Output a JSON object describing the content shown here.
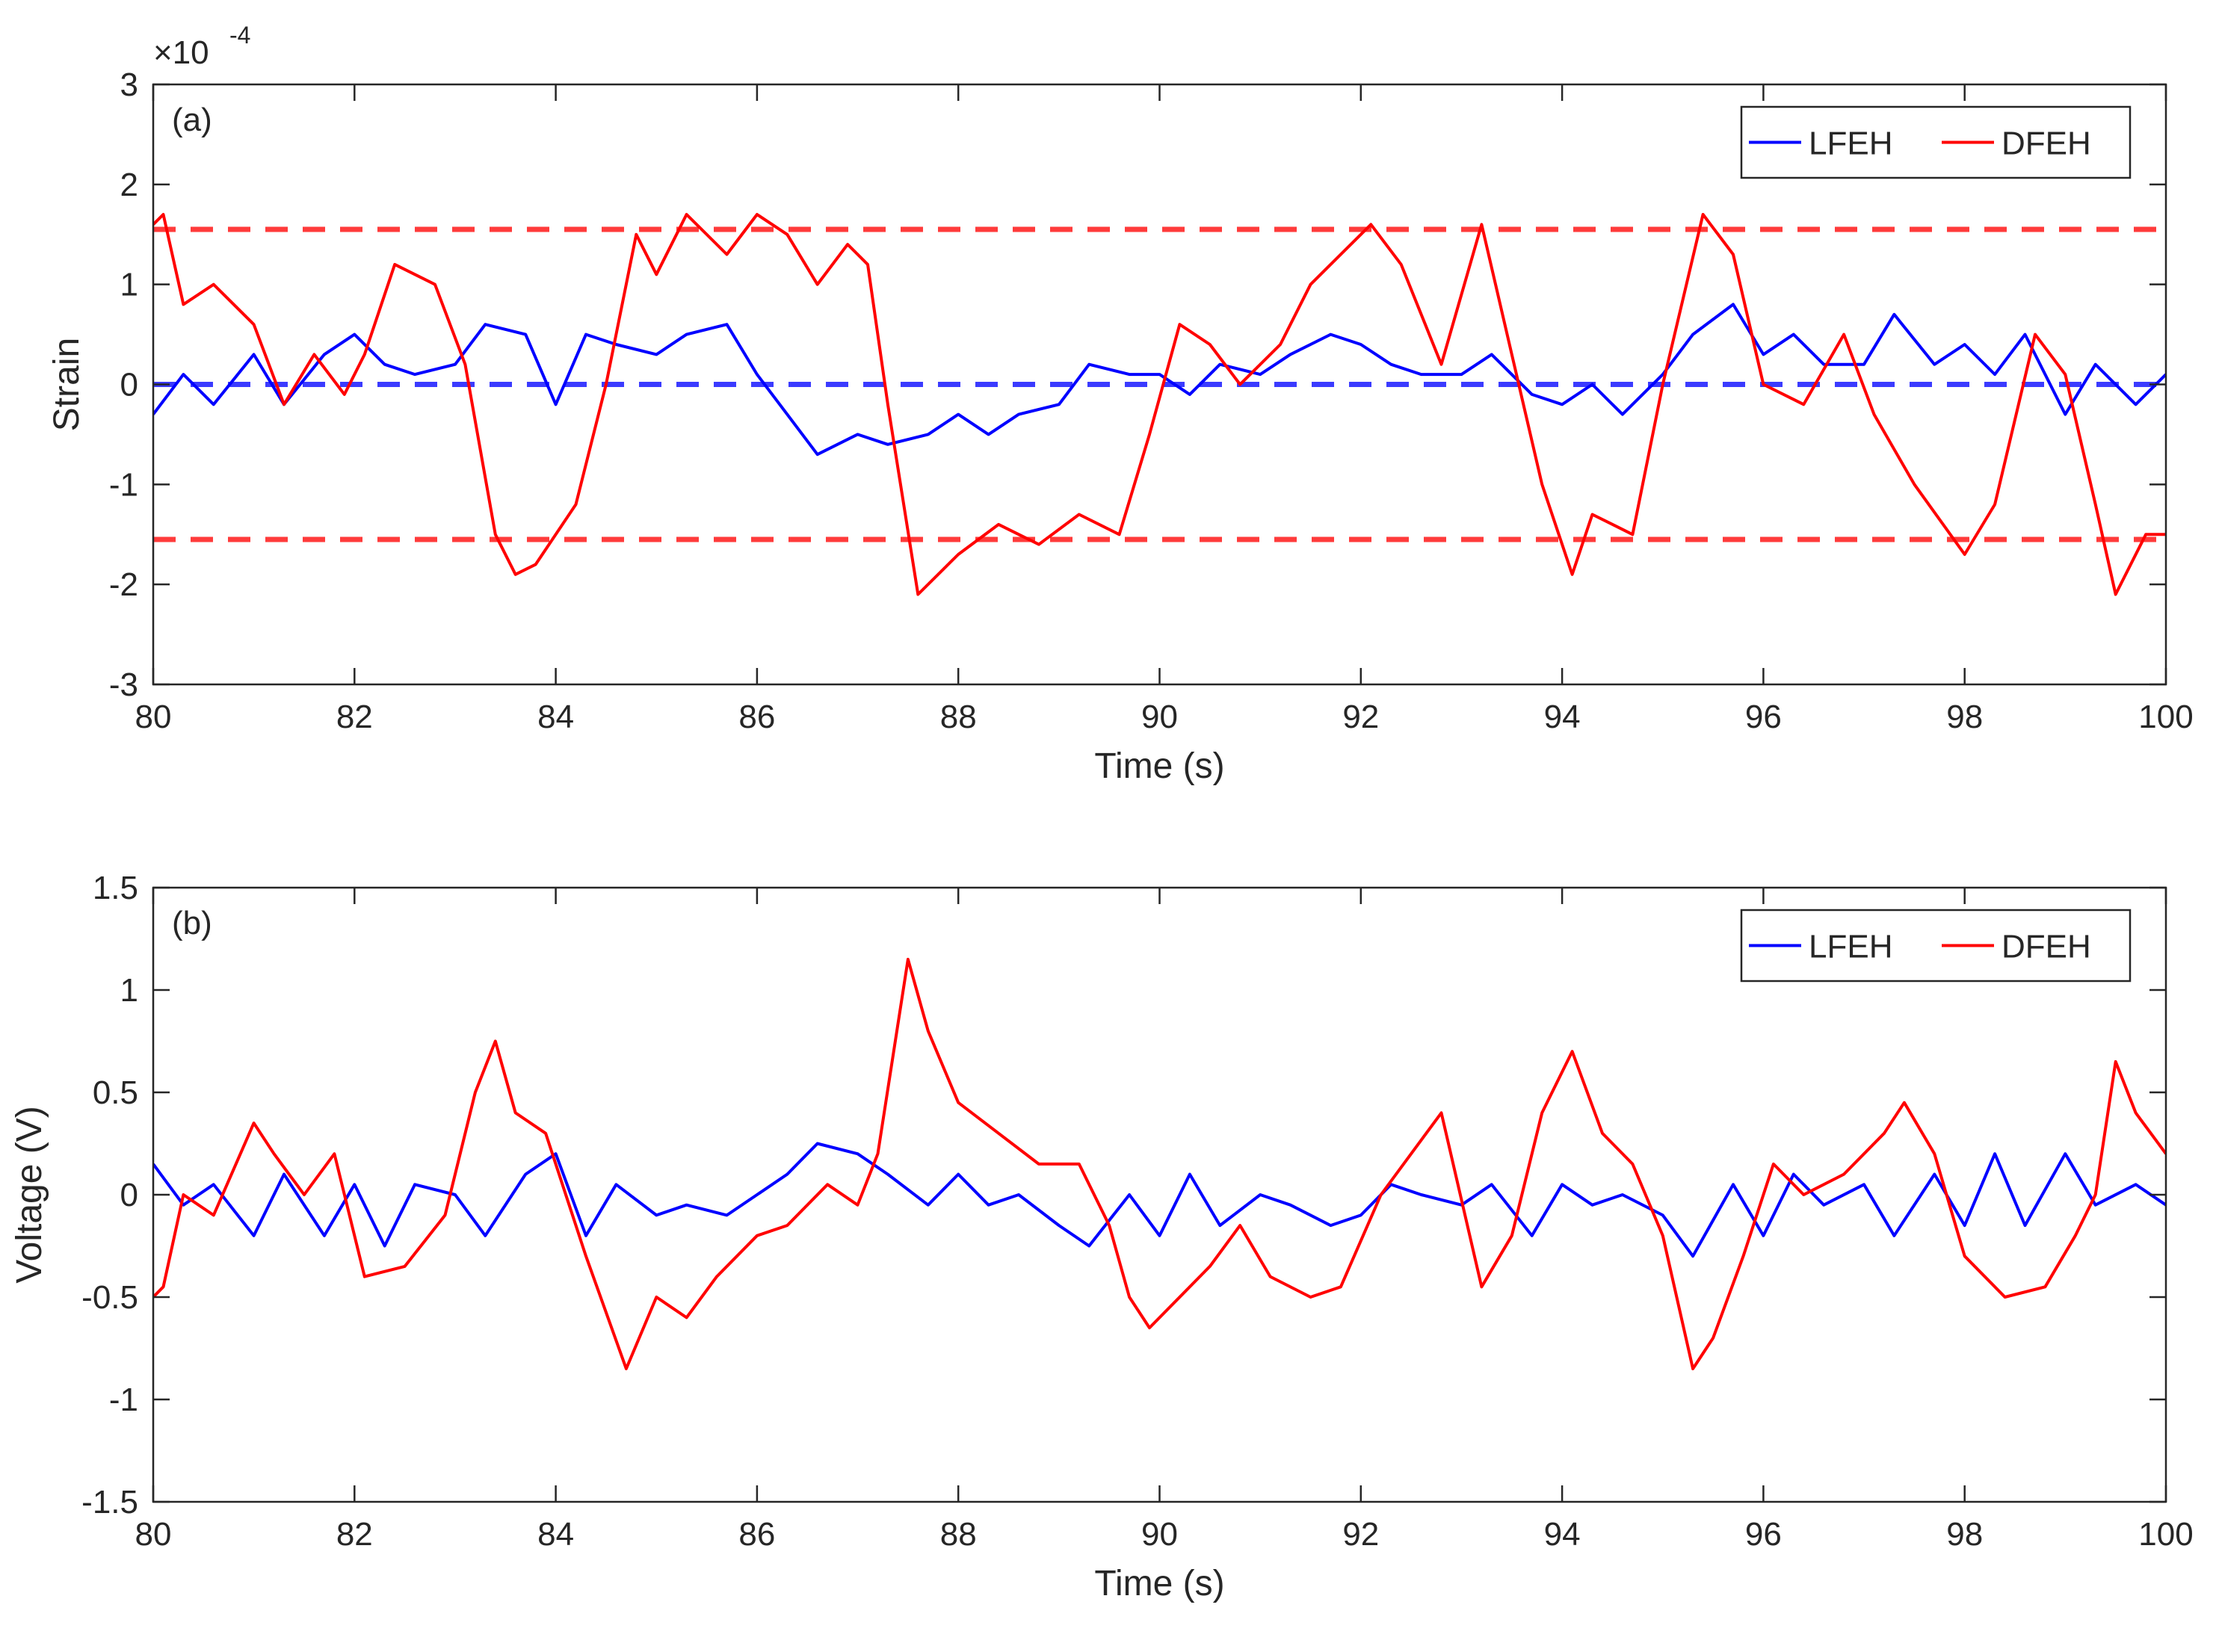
{
  "chart_data": [
    {
      "type": "line",
      "panel_label": "(a)",
      "title": "",
      "xlabel": "Time (s)",
      "ylabel": "Strain",
      "xlim": [
        80,
        100
      ],
      "ylim": [
        -3,
        3
      ],
      "y_scale_factor": "×10",
      "y_scale_exponent": "-4",
      "xticks": [
        "80",
        "82",
        "84",
        "86",
        "88",
        "90",
        "92",
        "94",
        "96",
        "98",
        "100"
      ],
      "yticks": [
        "-3",
        "-2",
        "-1",
        "0",
        "1",
        "2",
        "3"
      ],
      "legend": {
        "placement": "top-right",
        "entries": [
          "LFEH",
          "DFEH"
        ]
      },
      "reference_lines": [
        {
          "name": "upper-threshold",
          "y": 1.55,
          "color": "#ff3b3b",
          "style": "dashed"
        },
        {
          "name": "lower-threshold",
          "y": -1.55,
          "color": "#ff3b3b",
          "style": "dashed"
        },
        {
          "name": "zero-line",
          "y": 0,
          "color": "#3b3bff",
          "style": "dashed"
        }
      ],
      "series": [
        {
          "name": "LFEH",
          "color": "#0000ff",
          "x": [
            80,
            80.3,
            80.6,
            81,
            81.3,
            81.7,
            82,
            82.3,
            82.6,
            83,
            83.3,
            83.7,
            84,
            84.3,
            84.6,
            85,
            85.3,
            85.7,
            86,
            86.3,
            86.6,
            87,
            87.3,
            87.7,
            88,
            88.3,
            88.6,
            89,
            89.3,
            89.7,
            90,
            90.3,
            90.6,
            91,
            91.3,
            91.7,
            92,
            92.3,
            92.6,
            93,
            93.3,
            93.7,
            94,
            94.3,
            94.6,
            95,
            95.3,
            95.7,
            96,
            96.3,
            96.6,
            97,
            97.3,
            97.7,
            98,
            98.3,
            98.6,
            99,
            99.3,
            99.7,
            100
          ],
          "y": [
            -0.3,
            0.1,
            -0.2,
            0.3,
            -0.2,
            0.3,
            0.5,
            0.2,
            0.1,
            0.2,
            0.6,
            0.5,
            -0.2,
            0.5,
            0.4,
            0.3,
            0.5,
            0.6,
            0.1,
            -0.3,
            -0.7,
            -0.5,
            -0.6,
            -0.5,
            -0.3,
            -0.5,
            -0.3,
            -0.2,
            0.2,
            0.1,
            0.1,
            -0.1,
            0.2,
            0.1,
            0.3,
            0.5,
            0.4,
            0.2,
            0.1,
            0.1,
            0.3,
            -0.1,
            -0.2,
            0.0,
            -0.3,
            0.1,
            0.5,
            0.8,
            0.3,
            0.5,
            0.2,
            0.2,
            0.7,
            0.2,
            0.4,
            0.1,
            0.5,
            -0.3,
            0.2,
            -0.2,
            0.1
          ]
        },
        {
          "name": "DFEH",
          "color": "#ff0000",
          "x": [
            80,
            80.1,
            80.3,
            80.6,
            81,
            81.3,
            81.6,
            81.9,
            82.1,
            82.4,
            82.8,
            83.1,
            83.4,
            83.6,
            83.8,
            84.2,
            84.5,
            84.8,
            85,
            85.3,
            85.7,
            86,
            86.3,
            86.6,
            86.9,
            87.1,
            87.3,
            87.6,
            88,
            88.4,
            88.8,
            89.2,
            89.6,
            89.9,
            90.2,
            90.5,
            90.8,
            91.2,
            91.5,
            91.8,
            92.1,
            92.4,
            92.8,
            93.2,
            93.5,
            93.8,
            94.1,
            94.3,
            94.7,
            95,
            95.4,
            95.7,
            96,
            96.4,
            96.8,
            97.1,
            97.5,
            98,
            98.3,
            98.7,
            99,
            99.3,
            99.5,
            99.8,
            100
          ],
          "y": [
            1.6,
            1.7,
            0.8,
            1.0,
            0.6,
            -0.2,
            0.3,
            -0.1,
            0.3,
            1.2,
            1.0,
            0.2,
            -1.5,
            -1.9,
            -1.8,
            -1.2,
            0.0,
            1.5,
            1.1,
            1.7,
            1.3,
            1.7,
            1.5,
            1.0,
            1.4,
            1.2,
            -0.2,
            -2.1,
            -1.7,
            -1.4,
            -1.6,
            -1.3,
            -1.5,
            -0.5,
            0.6,
            0.4,
            0.0,
            0.4,
            1.0,
            1.3,
            1.6,
            1.2,
            0.2,
            1.6,
            0.3,
            -1.0,
            -1.9,
            -1.3,
            -1.5,
            0.0,
            1.7,
            1.3,
            0.0,
            -0.2,
            0.5,
            -0.3,
            -1.0,
            -1.7,
            -1.2,
            0.5,
            0.1,
            -1.2,
            -2.1,
            -1.5,
            -1.5
          ]
        }
      ]
    },
    {
      "type": "line",
      "panel_label": "(b)",
      "title": "",
      "xlabel": "Time (s)",
      "ylabel": "Voltage (V)",
      "xlim": [
        80,
        100
      ],
      "ylim": [
        -1.5,
        1.5
      ],
      "xticks": [
        "80",
        "82",
        "84",
        "86",
        "88",
        "90",
        "92",
        "94",
        "96",
        "98",
        "100"
      ],
      "yticks": [
        "-1.5",
        "-1",
        "-0.5",
        "0",
        "0.5",
        "1",
        "1.5"
      ],
      "legend": {
        "placement": "top-right",
        "entries": [
          "LFEH",
          "DFEH"
        ]
      },
      "series": [
        {
          "name": "LFEH",
          "color": "#0000ff",
          "x": [
            80,
            80.3,
            80.6,
            81,
            81.3,
            81.7,
            82,
            82.3,
            82.6,
            83,
            83.3,
            83.7,
            84,
            84.3,
            84.6,
            85,
            85.3,
            85.7,
            86,
            86.3,
            86.6,
            87,
            87.3,
            87.7,
            88,
            88.3,
            88.6,
            89,
            89.3,
            89.7,
            90,
            90.3,
            90.6,
            91,
            91.3,
            91.7,
            92,
            92.3,
            92.6,
            93,
            93.3,
            93.7,
            94,
            94.3,
            94.6,
            95,
            95.3,
            95.7,
            96,
            96.3,
            96.6,
            97,
            97.3,
            97.7,
            98,
            98.3,
            98.6,
            99,
            99.3,
            99.7,
            100
          ],
          "y": [
            0.15,
            -0.05,
            0.05,
            -0.2,
            0.1,
            -0.2,
            0.05,
            -0.25,
            0.05,
            0.0,
            -0.2,
            0.1,
            0.2,
            -0.2,
            0.05,
            -0.1,
            -0.05,
            -0.1,
            0.0,
            0.1,
            0.25,
            0.2,
            0.1,
            -0.05,
            0.1,
            -0.05,
            0.0,
            -0.15,
            -0.25,
            0.0,
            -0.2,
            0.1,
            -0.15,
            0.0,
            -0.05,
            -0.15,
            -0.1,
            0.05,
            0.0,
            -0.05,
            0.05,
            -0.2,
            0.05,
            -0.05,
            0.0,
            -0.1,
            -0.3,
            0.05,
            -0.2,
            0.1,
            -0.05,
            0.05,
            -0.2,
            0.1,
            -0.15,
            0.2,
            -0.15,
            0.2,
            -0.05,
            0.05,
            -0.05
          ]
        },
        {
          "name": "DFEH",
          "color": "#ff0000",
          "x": [
            80,
            80.1,
            80.3,
            80.6,
            81,
            81.2,
            81.5,
            81.8,
            82.1,
            82.5,
            82.9,
            83.2,
            83.4,
            83.6,
            83.9,
            84.3,
            84.7,
            85,
            85.3,
            85.6,
            86,
            86.3,
            86.7,
            87,
            87.2,
            87.5,
            87.7,
            88,
            88.4,
            88.8,
            89.2,
            89.5,
            89.7,
            89.9,
            90.2,
            90.5,
            90.8,
            91.1,
            91.5,
            91.8,
            92.2,
            92.5,
            92.8,
            93.2,
            93.5,
            93.8,
            94.1,
            94.4,
            94.7,
            95,
            95.3,
            95.5,
            95.8,
            96.1,
            96.4,
            96.8,
            97.2,
            97.4,
            97.7,
            98,
            98.4,
            98.8,
            99.1,
            99.3,
            99.5,
            99.7,
            100
          ],
          "y": [
            -0.5,
            -0.45,
            0.0,
            -0.1,
            0.35,
            0.2,
            0.0,
            0.2,
            -0.4,
            -0.35,
            -0.1,
            0.5,
            0.75,
            0.4,
            0.3,
            -0.3,
            -0.85,
            -0.5,
            -0.6,
            -0.4,
            -0.2,
            -0.15,
            0.05,
            -0.05,
            0.2,
            1.15,
            0.8,
            0.45,
            0.3,
            0.15,
            0.15,
            -0.15,
            -0.5,
            -0.65,
            -0.5,
            -0.35,
            -0.15,
            -0.4,
            -0.5,
            -0.45,
            0.0,
            0.2,
            0.4,
            -0.45,
            -0.2,
            0.4,
            0.7,
            0.3,
            0.15,
            -0.2,
            -0.85,
            -0.7,
            -0.3,
            0.15,
            0.0,
            0.1,
            0.3,
            0.45,
            0.2,
            -0.3,
            -0.5,
            -0.45,
            -0.2,
            0.0,
            0.65,
            0.4,
            0.2
          ]
        }
      ]
    }
  ]
}
